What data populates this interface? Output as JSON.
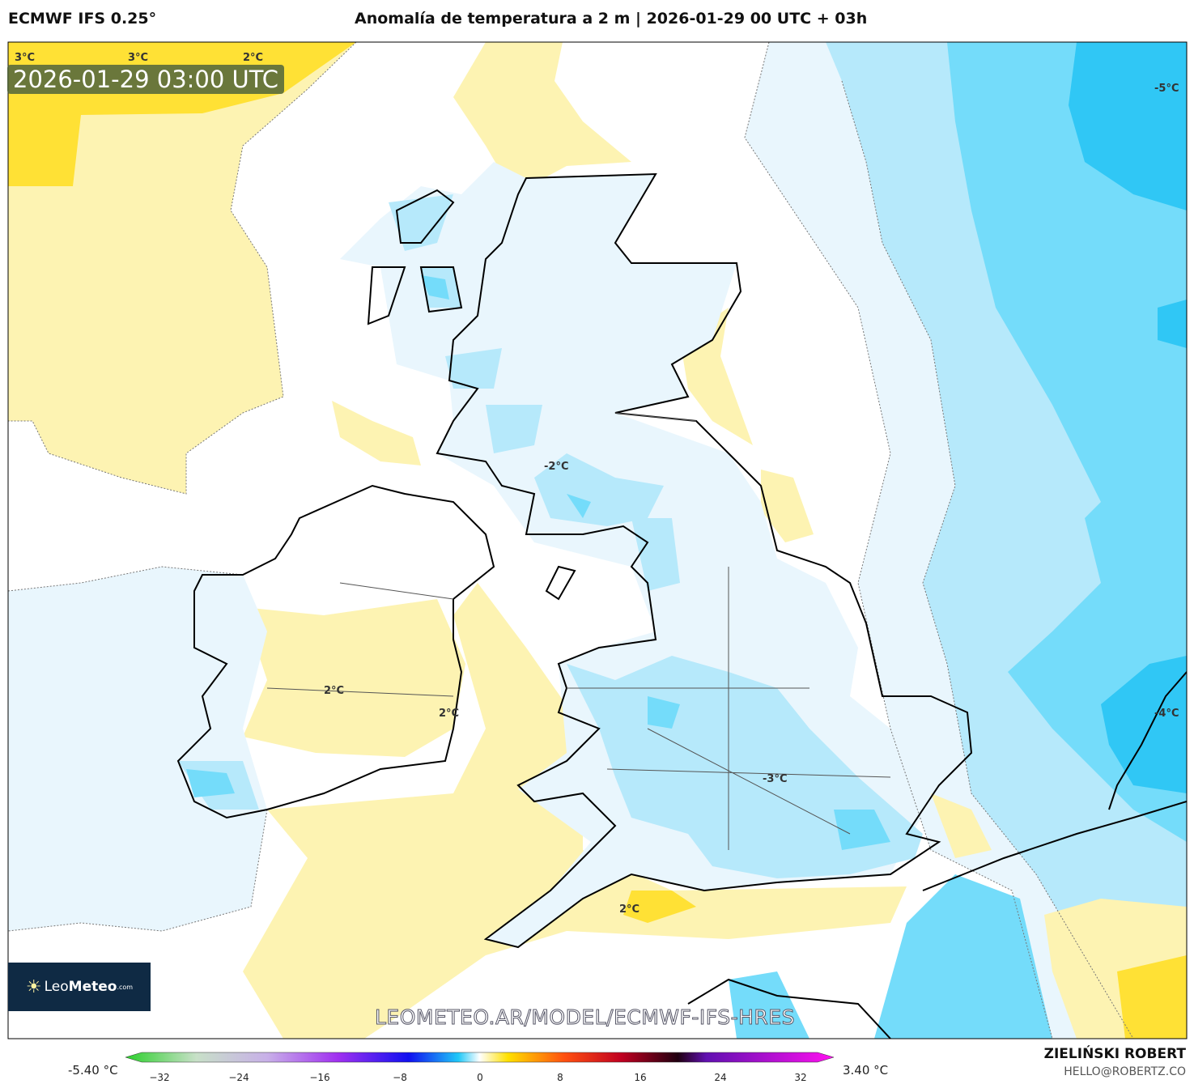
{
  "header": {
    "model": "ECMWF IFS 0.25°",
    "title": "Anomalía de temperatura a 2 m | 2026-01-29 00 UTC + 03h"
  },
  "map": {
    "valid_time": "2026-01-29 03:00 UTC",
    "contour_labels": [
      "3°C",
      "3°C",
      "2°C",
      "-5°C",
      "-2°C",
      "2°C",
      "2°C",
      "-4°C",
      "-3°C",
      "2°C"
    ],
    "watermark": "LEOMETEO.AR/MODEL/ECMWF-IFS-HRES",
    "logo": {
      "name_light": "Leo",
      "name_bold": "Meteo",
      "suffix": ".com"
    },
    "colors": {
      "bright_yellow": "#ffe135",
      "pale_yellow": "#fdf3b2",
      "white": "#ffffff",
      "very_light_blue": "#e9f6fd",
      "light_blue": "#b6e9fb",
      "mid_blue": "#74dcfa",
      "blue": "#30c7f5"
    }
  },
  "colorbar": {
    "min_label": "-5.40 °C",
    "max_label": "3.40 °C",
    "ticks": [
      "−32",
      "−24",
      "−16",
      "−8",
      "0",
      "8",
      "16",
      "24",
      "32"
    ]
  },
  "credits": {
    "author": "ZIELIŃSKI ROBERT",
    "email": "HELLO@ROBERTZ.CO"
  }
}
